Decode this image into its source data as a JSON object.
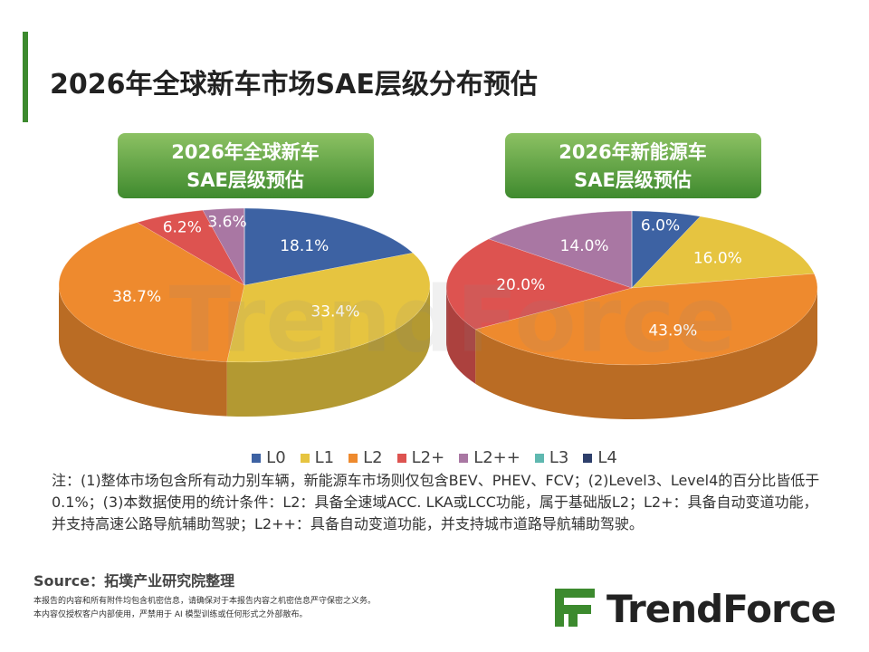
{
  "header": {
    "title": "2026年全球新车市场SAE层级分布预估"
  },
  "chart_data": [
    {
      "type": "pie",
      "title": [
        "2026年全球新车",
        "SAE层级预估"
      ],
      "categories": [
        "L0",
        "L1",
        "L2",
        "L2+",
        "L2++",
        "L3",
        "L4"
      ],
      "values": [
        18.1,
        33.4,
        38.7,
        6.2,
        3.6,
        0,
        0
      ],
      "value_labels": [
        "18.1%",
        "33.4%",
        "38.7%",
        "6.2%",
        "3.6%",
        null,
        null
      ],
      "colors": [
        "#3d62a3",
        "#e6c440",
        "#ee8a2e",
        "#dd5350",
        "#a977a3",
        "#5fb8b0",
        "#2e3f6b"
      ]
    },
    {
      "type": "pie",
      "title": [
        "2026年新能源车",
        "SAE层级预估"
      ],
      "categories": [
        "L0",
        "L1",
        "L2",
        "L2+",
        "L2++",
        "L3",
        "L4"
      ],
      "values": [
        6.0,
        16.0,
        43.9,
        20.0,
        14.0,
        0,
        0
      ],
      "value_labels": [
        "6.0%",
        "16.0%",
        "43.9%",
        "20.0%",
        "14.0%",
        null,
        null
      ],
      "colors": [
        "#3d62a3",
        "#e6c440",
        "#ee8a2e",
        "#dd5350",
        "#a977a3",
        "#5fb8b0",
        "#2e3f6b"
      ]
    }
  ],
  "note": "注：(1)整体市场包含所有动力别车辆，新能源车市场则仅包含BEV、PHEV、FCV；(2)Level3、Level4的百分比皆低于0.1%；(3)本数据使用的统计条件：L2：具备全速域ACC. LKA或LCC功能，属于基础版L2；L2+：具备自动变道功能，并支持高速公路导航辅助驾驶；L2++：具备自动变道功能，并支持城市道路导航辅助驾驶。",
  "source": "Source：拓墣产业研究院整理",
  "disclaimer": [
    "本报告的内容和所有附件均包含机密信息，请确保对于本报告内容之机密信息严守保密之义务。",
    "本内容仅授权客户内部使用，严禁用于 AI 模型训练或任何形式之外部散布。"
  ],
  "logo": "TrendForce"
}
